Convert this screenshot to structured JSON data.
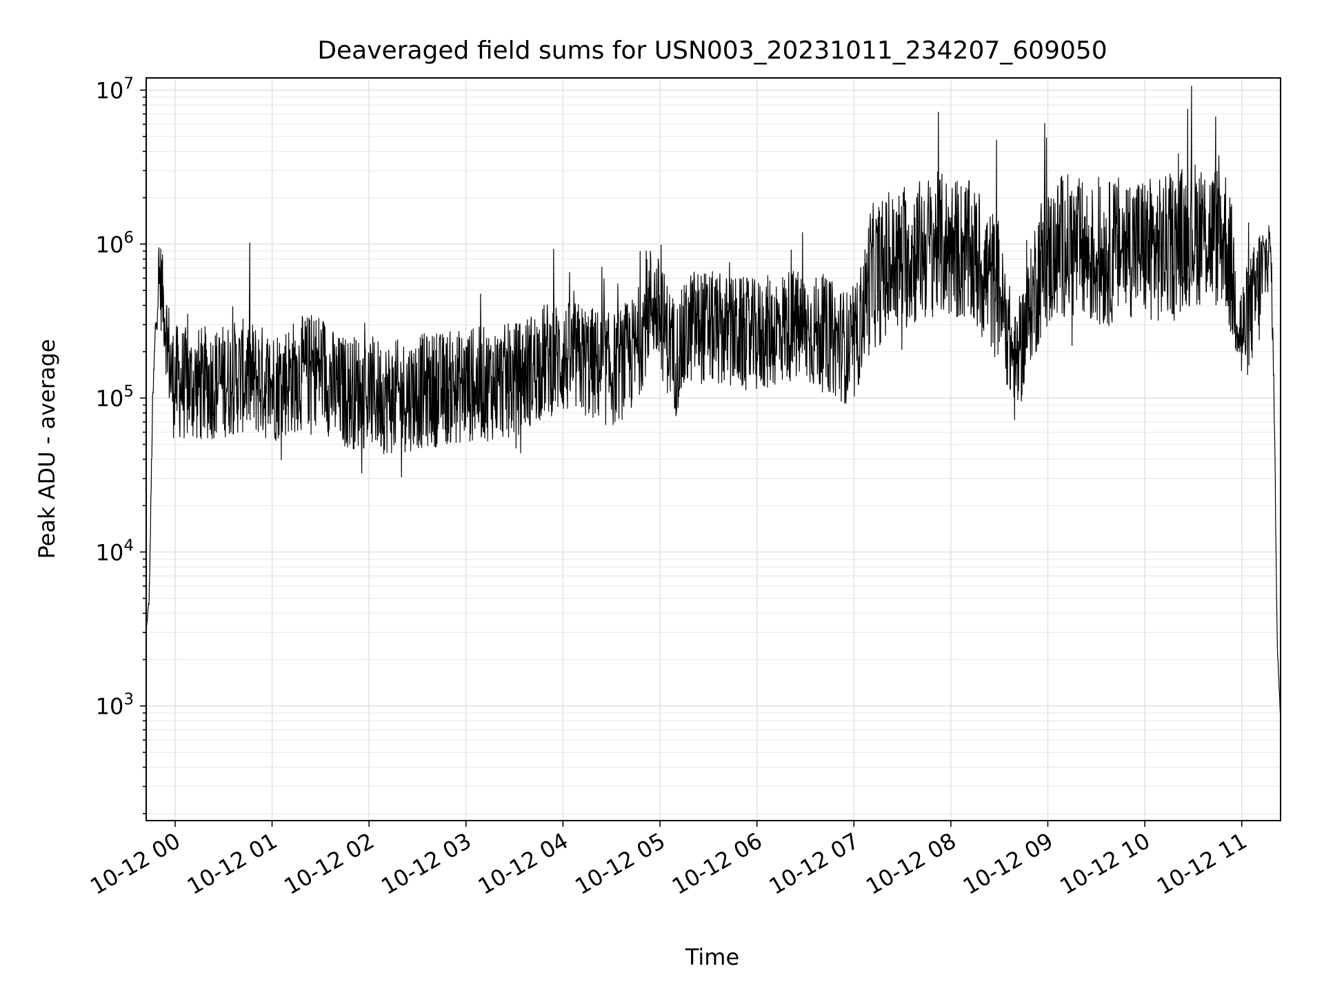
{
  "chart_data": {
    "type": "line",
    "title": "Deaveraged field sums for USN003_20231011_234207_609050",
    "xlabel": "Time",
    "ylabel": "Peak ADU - average",
    "yscale": "log",
    "ylim": [
      180,
      12000000
    ],
    "xlim": [
      "2023-10-11T23:42:07",
      "2023-10-12T11:24:00"
    ],
    "x_ticks": [
      {
        "t": "2023-10-12T00:00",
        "label": "10-12 00"
      },
      {
        "t": "2023-10-12T01:00",
        "label": "10-12 01"
      },
      {
        "t": "2023-10-12T02:00",
        "label": "10-12 02"
      },
      {
        "t": "2023-10-12T03:00",
        "label": "10-12 03"
      },
      {
        "t": "2023-10-12T04:00",
        "label": "10-12 04"
      },
      {
        "t": "2023-10-12T05:00",
        "label": "10-12 05"
      },
      {
        "t": "2023-10-12T06:00",
        "label": "10-12 06"
      },
      {
        "t": "2023-10-12T07:00",
        "label": "10-12 07"
      },
      {
        "t": "2023-10-12T08:00",
        "label": "10-12 08"
      },
      {
        "t": "2023-10-12T09:00",
        "label": "10-12 09"
      },
      {
        "t": "2023-10-12T10:00",
        "label": "10-12 10"
      },
      {
        "t": "2023-10-12T11:00",
        "label": "10-12 11"
      }
    ],
    "y_ticks": [
      {
        "value": 1000,
        "base": "10",
        "exp": "3"
      },
      {
        "value": 10000,
        "base": "10",
        "exp": "4"
      },
      {
        "value": 100000,
        "base": "10",
        "exp": "5"
      },
      {
        "value": 1000000,
        "base": "10",
        "exp": "6"
      },
      {
        "value": 10000000,
        "base": "10",
        "exp": "7"
      }
    ],
    "grid": true,
    "line_color": "#000000",
    "grid_color": "#e3e3e3",
    "series": [
      {
        "x": [
          "2023-10-11T23:42",
          "2023-10-11T23:44",
          "2023-10-11T23:46",
          "2023-10-11T23:48",
          "2023-10-11T23:50",
          "2023-10-11T23:52",
          "2023-10-11T23:55",
          "2023-10-11T23:58",
          "2023-10-12T00:10",
          "2023-10-12T00:30",
          "2023-10-12T00:45",
          "2023-10-12T01:00",
          "2023-10-12T01:15",
          "2023-10-12T01:30",
          "2023-10-12T01:40",
          "2023-10-12T01:55",
          "2023-10-12T02:15",
          "2023-10-12T02:30",
          "2023-10-12T03:00",
          "2023-10-12T03:30",
          "2023-10-12T03:50",
          "2023-10-12T04:10",
          "2023-10-12T04:30",
          "2023-10-12T04:45",
          "2023-10-12T04:55",
          "2023-10-12T05:10",
          "2023-10-12T05:20",
          "2023-10-12T05:40",
          "2023-10-12T06:00",
          "2023-10-12T06:20",
          "2023-10-12T06:45",
          "2023-10-12T07:00",
          "2023-10-12T07:10",
          "2023-10-12T07:30",
          "2023-10-12T07:50",
          "2023-10-12T08:10",
          "2023-10-12T08:30",
          "2023-10-12T08:40",
          "2023-10-12T08:55",
          "2023-10-12T09:10",
          "2023-10-12T09:30",
          "2023-10-12T09:50",
          "2023-10-12T10:10",
          "2023-10-12T10:30",
          "2023-10-12T10:50",
          "2023-10-12T11:00",
          "2023-10-12T11:10",
          "2023-10-12T11:15",
          "2023-10-12T11:18",
          "2023-10-12T11:20",
          "2023-10-12T11:22",
          "2023-10-12T11:24"
        ],
        "y": [
          3000,
          5000,
          80000,
          300000,
          600000,
          500000,
          250000,
          130000,
          120000,
          130000,
          140000,
          120000,
          140000,
          160000,
          110000,
          110000,
          100000,
          110000,
          120000,
          130000,
          180000,
          180000,
          150000,
          200000,
          450000,
          180000,
          300000,
          270000,
          250000,
          300000,
          250000,
          200000,
          600000,
          800000,
          1000000,
          900000,
          500000,
          150000,
          700000,
          1000000,
          800000,
          1000000,
          900000,
          1200000,
          1100000,
          250000,
          500000,
          800000,
          900000,
          100000,
          2500,
          800
        ]
      }
    ]
  }
}
